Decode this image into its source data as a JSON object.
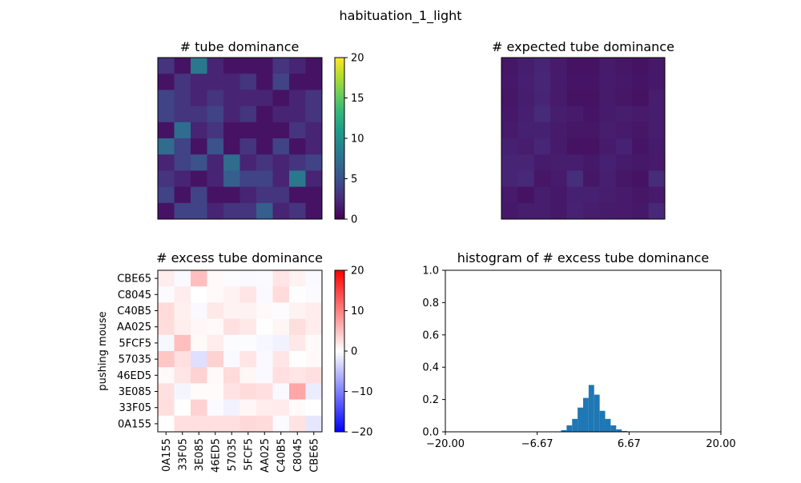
{
  "figure": {
    "suptitle": "habituation_1_light"
  },
  "chart_data": [
    {
      "id": "observed",
      "type": "heatmap",
      "title": "# tube dominance",
      "colormap": "viridis",
      "vmin": 0,
      "vmax": 20,
      "colorbar_ticks": [
        0,
        5,
        10,
        15,
        20
      ],
      "show_tick_labels": false,
      "values": [
        [
          3,
          1,
          8,
          2,
          1,
          1,
          1,
          3,
          2,
          1
        ],
        [
          1,
          3,
          2,
          2,
          2,
          3,
          1,
          4,
          1,
          1
        ],
        [
          4,
          3,
          2,
          3,
          2,
          2,
          2,
          1,
          2,
          3
        ],
        [
          4,
          3,
          3,
          4,
          2,
          3,
          1,
          2,
          2,
          3
        ],
        [
          1,
          7,
          2,
          3,
          1,
          1,
          1,
          1,
          3,
          2
        ],
        [
          7,
          4,
          1,
          5,
          1,
          3,
          1,
          4,
          1,
          2
        ],
        [
          2,
          4,
          5,
          2,
          7,
          2,
          3,
          2,
          3,
          4
        ],
        [
          3,
          2,
          1,
          2,
          6,
          4,
          4,
          2,
          8,
          2
        ],
        [
          4,
          1,
          4,
          1,
          1,
          2,
          3,
          3,
          1,
          1
        ],
        [
          1,
          4,
          4,
          2,
          3,
          3,
          6,
          2,
          3,
          1
        ]
      ]
    },
    {
      "id": "expected",
      "type": "heatmap",
      "title": "# expected tube dominance",
      "colormap": "viridis",
      "vmin": 0,
      "vmax": 20,
      "show_tick_labels": false,
      "values": [
        [
          1.2,
          1.6,
          2.0,
          1.4,
          1.0,
          1.0,
          1.4,
          1.2,
          1.0,
          1.3
        ],
        [
          1.3,
          1.7,
          2.1,
          1.5,
          1.1,
          1.1,
          1.5,
          1.3,
          1.1,
          1.3
        ],
        [
          1.2,
          1.6,
          2.0,
          1.4,
          1.0,
          1.0,
          1.4,
          1.2,
          1.0,
          1.6
        ],
        [
          1.3,
          1.7,
          2.4,
          1.6,
          1.4,
          1.1,
          1.5,
          1.6,
          1.4,
          1.6
        ],
        [
          1.4,
          1.8,
          1.8,
          1.5,
          1.2,
          1.2,
          1.6,
          1.4,
          1.2,
          1.6
        ],
        [
          1.8,
          1.6,
          2.1,
          1.5,
          1.0,
          1.0,
          1.5,
          1.9,
          1.1,
          1.5
        ],
        [
          2.0,
          2.0,
          1.5,
          1.6,
          1.6,
          1.3,
          1.8,
          1.5,
          1.3,
          1.4
        ],
        [
          2.0,
          2.2,
          1.2,
          1.4,
          2.6,
          1.2,
          1.7,
          1.2,
          1.0,
          2.5
        ],
        [
          1.4,
          1.0,
          1.6,
          1.3,
          1.8,
          1.8,
          1.6,
          1.4,
          1.2,
          1.4
        ],
        [
          1.3,
          1.6,
          1.6,
          1.3,
          1.9,
          1.6,
          1.5,
          1.4,
          1.3,
          2.2
        ]
      ]
    },
    {
      "id": "excess",
      "type": "heatmap",
      "title": "# excess tube dominance",
      "colormap": "bwr",
      "vmin": -20,
      "vmax": 20,
      "colorbar_ticks": [
        -20,
        -10,
        0,
        10,
        20
      ],
      "ylabel": "pushing mouse",
      "row_labels": [
        "CBE65",
        "C8045",
        "C40B5",
        "AA025",
        "5FCF5",
        "57035",
        "46ED5",
        "3E085",
        "33F05",
        "0A155"
      ],
      "col_labels": [
        "0A155",
        "33F05",
        "3E085",
        "46ED5",
        "57035",
        "5FCF5",
        "AA025",
        "C40B5",
        "C8045",
        "CBE65"
      ],
      "values": [
        [
          1.5,
          -0.5,
          5.0,
          0.5,
          -0.2,
          -0.5,
          -0.3,
          2.0,
          1.0,
          -0.5
        ],
        [
          -0.3,
          1.5,
          0.0,
          0.5,
          1.0,
          2.0,
          -0.5,
          2.8,
          -0.1,
          -0.3
        ],
        [
          2.8,
          1.2,
          -0.5,
          1.8,
          1.0,
          1.0,
          0.5,
          -0.2,
          1.0,
          1.5
        ],
        [
          2.7,
          1.3,
          0.6,
          0.5,
          2.4,
          1.8,
          -0.1,
          0.8,
          2.6,
          1.4
        ],
        [
          -0.6,
          5.0,
          0.4,
          1.5,
          -0.2,
          -0.2,
          -0.6,
          -1.0,
          1.8,
          0.4
        ],
        [
          4.5,
          2.5,
          -2.5,
          3.5,
          -0.5,
          2.0,
          -0.5,
          2.0,
          -0.1,
          0.5
        ],
        [
          0.5,
          2.0,
          3.5,
          0.5,
          2.8,
          0.7,
          -0.5,
          2.5,
          2.0,
          2.5
        ],
        [
          2.5,
          -0.8,
          0.3,
          0.3,
          2.2,
          2.8,
          2.5,
          -0.5,
          7.0,
          -1.5
        ],
        [
          2.6,
          0.0,
          3.5,
          -0.3,
          -1.0,
          0.7,
          1.5,
          1.6,
          0.3,
          0.0
        ],
        [
          0.0,
          2.5,
          2.5,
          2.5,
          2.5,
          3.0,
          2.8,
          -0.4,
          2.2,
          -2.0
        ]
      ]
    },
    {
      "id": "histogram",
      "type": "bar",
      "title": "histogram of # excess tube dominance",
      "xlim": [
        -20,
        20
      ],
      "ylim": [
        0,
        1
      ],
      "xticks": [
        -20,
        -6.67,
        6.67,
        20
      ],
      "xtick_labels": [
        "−20.00",
        "−6.67",
        "6.67",
        "20.00"
      ],
      "yticks": [
        0,
        0.2,
        0.4,
        0.6,
        0.8,
        1.0
      ],
      "ytick_labels": [
        "0.0",
        "0.2",
        "0.4",
        "0.6",
        "0.8",
        "1.0"
      ],
      "bin_width": 0.8,
      "bins": [
        {
          "x0": -3.2,
          "value": 0.01
        },
        {
          "x0": -2.4,
          "value": 0.04
        },
        {
          "x0": -1.6,
          "value": 0.08
        },
        {
          "x0": -0.8,
          "value": 0.15
        },
        {
          "x0": 0.0,
          "value": 0.21
        },
        {
          "x0": 0.8,
          "value": 0.29
        },
        {
          "x0": 1.6,
          "value": 0.23
        },
        {
          "x0": 2.4,
          "value": 0.13
        },
        {
          "x0": 3.2,
          "value": 0.08
        },
        {
          "x0": 4.0,
          "value": 0.04
        },
        {
          "x0": 4.8,
          "value": 0.015
        },
        {
          "x0": 5.6,
          "value": 0.005
        }
      ],
      "bar_color": "#1f77b4"
    }
  ]
}
